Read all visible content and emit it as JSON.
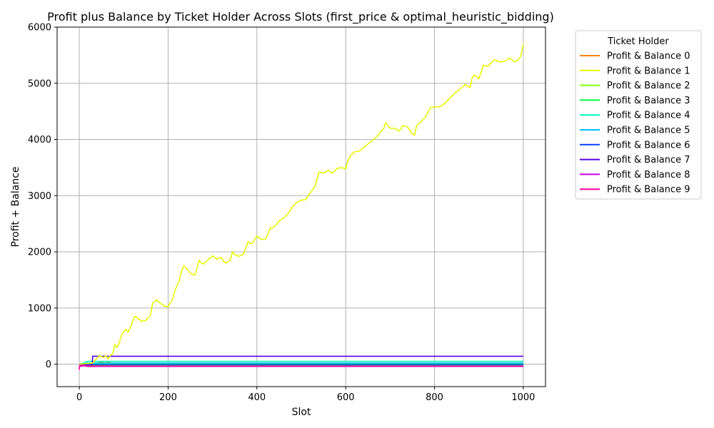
{
  "chart_data": {
    "type": "line",
    "title": "Profit plus Balance by Ticket Holder Across Slots (first_price & optimal_heuristic_bidding)",
    "xlabel": "Slot",
    "ylabel": "Profit + Balance",
    "xlim": [
      -50,
      1050
    ],
    "ylim": [
      -400,
      6000
    ],
    "xticks": [
      0,
      200,
      400,
      600,
      800,
      1000
    ],
    "xtick_labels": [
      "0",
      "200",
      "400",
      "600",
      "800",
      "1000"
    ],
    "yticks": [
      0,
      1000,
      2000,
      3000,
      4000,
      5000,
      6000
    ],
    "ytick_labels": [
      "0",
      "1000",
      "2000",
      "3000",
      "4000",
      "5000",
      "6000"
    ],
    "grid": true,
    "legend_title": "Ticket Holder",
    "legend_position": "outside-right",
    "series": [
      {
        "name": "Profit & Balance 0",
        "color": "#ff8000",
        "x": [
          0,
          20,
          40,
          60,
          80,
          1000
        ],
        "y": [
          0,
          0,
          20,
          50,
          0,
          0
        ]
      },
      {
        "name": "Profit & Balance 1",
        "color": "#e6ff00",
        "x": [
          0,
          30,
          45,
          55,
          60,
          65,
          70,
          75,
          80,
          85,
          90,
          95,
          100,
          105,
          110,
          115,
          120,
          125,
          130,
          140,
          150,
          160,
          165,
          170,
          175,
          180,
          190,
          200,
          205,
          210,
          215,
          220,
          225,
          230,
          235,
          240,
          250,
          260,
          265,
          270,
          275,
          280,
          290,
          300,
          305,
          310,
          320,
          325,
          330,
          340,
          345,
          350,
          360,
          370,
          380,
          385,
          390,
          400,
          410,
          420,
          430,
          440,
          450,
          460,
          470,
          480,
          490,
          500,
          510,
          520,
          525,
          530,
          540,
          550,
          560,
          570,
          580,
          590,
          600,
          605,
          610,
          620,
          630,
          640,
          650,
          660,
          670,
          680,
          685,
          690,
          700,
          710,
          720,
          725,
          730,
          740,
          750,
          755,
          760,
          770,
          780,
          790,
          800,
          810,
          820,
          830,
          840,
          850,
          860,
          870,
          880,
          885,
          890,
          900,
          905,
          910,
          920,
          930,
          935,
          940,
          950,
          960,
          970,
          980,
          990,
          995,
          1000
        ],
        "y": [
          0,
          20,
          150,
          120,
          150,
          90,
          160,
          180,
          350,
          300,
          380,
          520,
          580,
          620,
          570,
          650,
          760,
          850,
          830,
          760,
          780,
          870,
          1080,
          1120,
          1140,
          1100,
          1040,
          1020,
          1100,
          1150,
          1300,
          1400,
          1480,
          1650,
          1750,
          1720,
          1620,
          1580,
          1700,
          1850,
          1800,
          1780,
          1860,
          1930,
          1900,
          1870,
          1900,
          1830,
          1800,
          1850,
          2000,
          1950,
          1920,
          1960,
          2180,
          2150,
          2150,
          2280,
          2220,
          2230,
          2420,
          2450,
          2550,
          2600,
          2680,
          2800,
          2880,
          2920,
          2930,
          3050,
          3100,
          3150,
          3420,
          3400,
          3450,
          3400,
          3480,
          3500,
          3480,
          3620,
          3700,
          3780,
          3790,
          3850,
          3920,
          3980,
          4050,
          4150,
          4180,
          4300,
          4200,
          4200,
          4150,
          4200,
          4250,
          4220,
          4100,
          4080,
          4250,
          4320,
          4400,
          4560,
          4580,
          4580,
          4620,
          4700,
          4780,
          4850,
          4920,
          4980,
          4920,
          5100,
          5150,
          5080,
          5200,
          5320,
          5300,
          5380,
          5420,
          5400,
          5380,
          5400,
          5450,
          5380,
          5420,
          5500,
          5700
        ]
      },
      {
        "name": "Profit & Balance 2",
        "color": "#80ff00",
        "x": [
          0,
          10,
          20,
          1000
        ],
        "y": [
          -20,
          -10,
          -30,
          -30
        ]
      },
      {
        "name": "Profit & Balance 3",
        "color": "#00ff40",
        "x": [
          0,
          10,
          20,
          1000
        ],
        "y": [
          -10,
          0,
          10,
          10
        ]
      },
      {
        "name": "Profit & Balance 4",
        "color": "#00ffbf",
        "x": [
          0,
          10,
          15,
          20,
          1000
        ],
        "y": [
          0,
          20,
          40,
          50,
          50
        ]
      },
      {
        "name": "Profit & Balance 5",
        "color": "#00bfff",
        "x": [
          0,
          10,
          20,
          1000
        ],
        "y": [
          0,
          10,
          20,
          20
        ]
      },
      {
        "name": "Profit & Balance 6",
        "color": "#0040ff",
        "x": [
          0,
          10,
          20,
          1000
        ],
        "y": [
          0,
          0,
          -10,
          -10
        ]
      },
      {
        "name": "Profit & Balance 7",
        "color": "#5a00e6",
        "x": [
          0,
          10,
          29,
          30,
          1000
        ],
        "y": [
          0,
          -10,
          -10,
          140,
          140
        ]
      },
      {
        "name": "Profit & Balance 8",
        "color": "#c800e6",
        "x": [
          0,
          10,
          20,
          1000
        ],
        "y": [
          -40,
          -30,
          -40,
          -40
        ]
      },
      {
        "name": "Profit & Balance 9",
        "color": "#ff0099",
        "x": [
          0,
          0.5,
          1,
          10,
          20,
          1000
        ],
        "y": [
          -100,
          -30,
          -20,
          -30,
          -35,
          -35
        ]
      }
    ]
  }
}
